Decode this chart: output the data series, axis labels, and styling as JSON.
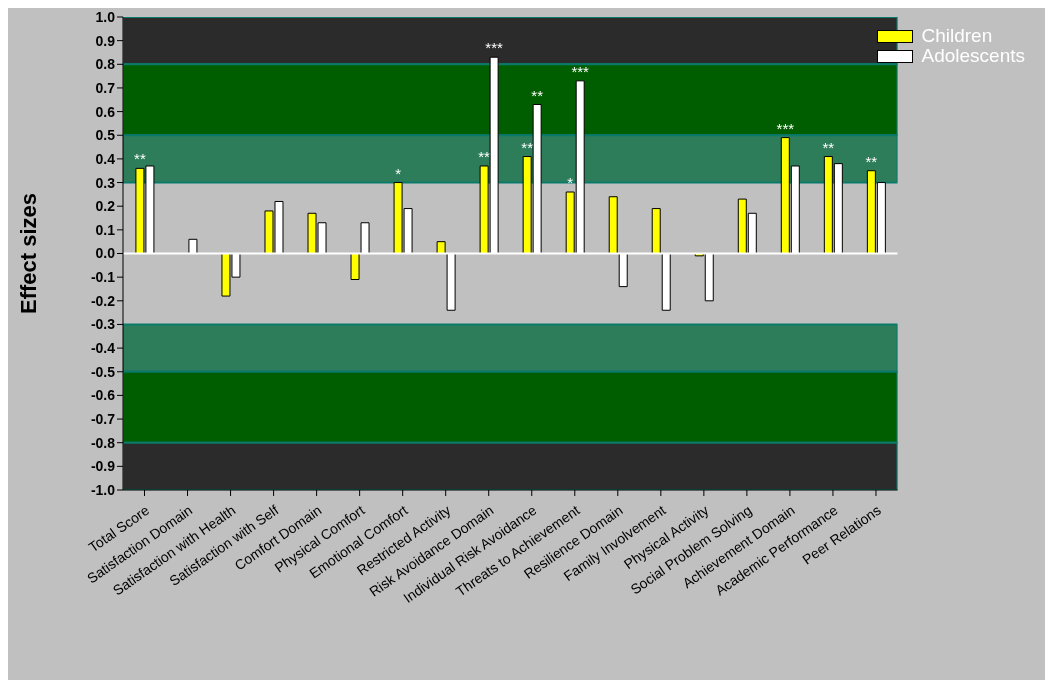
{
  "chart_data": {
    "type": "bar",
    "ylabel": "Effect sizes",
    "categories": [
      "Total Score",
      "Satisfaction Domain",
      "Satisfaction with Health",
      "Satisfaction with Self",
      "Comfort Domain",
      "Physical Comfort",
      "Emotional Comfort",
      "Restricted Activity",
      "Risk Avoidance Domain",
      "Individual Risk Avoidance",
      "Threats to Achievement",
      "Resilience Domain",
      "Family Involvement",
      "Physical Activity",
      "Social Problem Solving",
      "Achievement Domain",
      "Academic Performance",
      "Peer Relations"
    ],
    "series": [
      {
        "name": "Children",
        "color": "#ffff00",
        "values": [
          0.36,
          0.0,
          -0.18,
          0.18,
          0.17,
          -0.11,
          0.3,
          0.05,
          0.37,
          0.41,
          0.26,
          0.24,
          0.19,
          -0.01,
          0.23,
          0.49,
          0.41,
          0.35
        ],
        "value_labels": [
          "**",
          null,
          null,
          null,
          null,
          null,
          "*",
          null,
          "**",
          "**",
          "*",
          null,
          null,
          null,
          null,
          "***",
          "**",
          "**"
        ]
      },
      {
        "name": "Adolescents",
        "color": "#ffffff",
        "values": [
          0.37,
          0.06,
          -0.1,
          0.22,
          0.13,
          0.13,
          0.19,
          -0.24,
          0.83,
          0.63,
          0.73,
          -0.14,
          -0.24,
          -0.2,
          0.17,
          0.37,
          0.38,
          0.3
        ],
        "value_labels": [
          null,
          null,
          null,
          null,
          null,
          null,
          null,
          null,
          "***",
          "**",
          "***",
          null,
          null,
          null,
          null,
          null,
          null,
          null
        ]
      }
    ],
    "ylim": [
      -1,
      1
    ],
    "yticks": [
      {
        "value": -1,
        "label": "-1.0"
      },
      {
        "value": -0.9,
        "label": "-0.9"
      },
      {
        "value": -0.8,
        "label": "-0.8"
      },
      {
        "value": -0.7,
        "label": "-0.7"
      },
      {
        "value": -0.6,
        "label": "-0.6"
      },
      {
        "value": -0.5,
        "label": "-0.5"
      },
      {
        "value": -0.4,
        "label": "-0.4"
      },
      {
        "value": -0.3,
        "label": "-0.3"
      },
      {
        "value": -0.2,
        "label": "-0.2"
      },
      {
        "value": -0.1,
        "label": "-0.1"
      },
      {
        "value": 0,
        "label": "0.0"
      },
      {
        "value": 0.1,
        "label": "0.1"
      },
      {
        "value": 0.2,
        "label": "0.2"
      },
      {
        "value": 0.3,
        "label": "0.3"
      },
      {
        "value": 0.4,
        "label": "0.4"
      },
      {
        "value": 0.5,
        "label": "0.5"
      },
      {
        "value": 0.6,
        "label": "0.6"
      },
      {
        "value": 0.7,
        "label": "0.7"
      },
      {
        "value": 0.8,
        "label": "0.8"
      },
      {
        "value": 0.9,
        "label": "0.9"
      },
      {
        "value": 1,
        "label": "1.0"
      }
    ],
    "bands": [
      {
        "axis": "y",
        "from": 0.8,
        "to": 1.0,
        "color": "#2b2b2b"
      },
      {
        "axis": "y",
        "from": 0.5,
        "to": 0.8,
        "color": "#005e00"
      },
      {
        "axis": "y",
        "from": 0.3,
        "to": 0.5,
        "color": "#2e7d5a"
      },
      {
        "axis": "y",
        "from": -0.5,
        "to": -0.3,
        "color": "#2e7d5a"
      },
      {
        "axis": "y",
        "from": -0.8,
        "to": -0.5,
        "color": "#005e00"
      },
      {
        "axis": "y",
        "from": -1.0,
        "to": -0.8,
        "color": "#2b2b2b"
      }
    ],
    "ref_lines": [
      {
        "axis": "y",
        "value": 0,
        "color": "#ffffff"
      }
    ],
    "legend": "top right",
    "grid": false
  }
}
